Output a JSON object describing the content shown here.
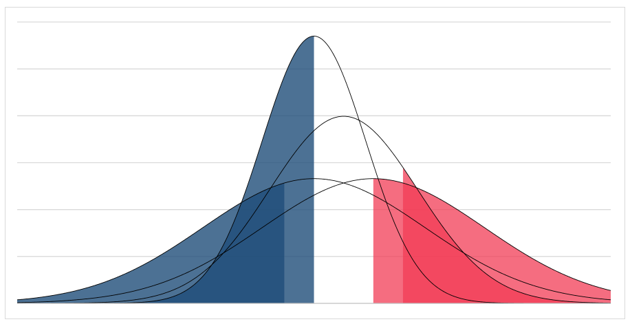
{
  "chart_data": {
    "type": "area",
    "title": "",
    "xlabel": "",
    "ylabel": "",
    "grid": true,
    "legend": "none",
    "xlim": [
      -4,
      4
    ],
    "ylim": [
      0,
      0.6
    ],
    "ygrid_step": 0.1,
    "series": [
      {
        "mean": 0,
        "sd": 0.7,
        "shade": [
          {
            "from": -4,
            "to": 0,
            "color": "#1f4e79",
            "opacity": 0.8
          }
        ]
      },
      {
        "mean": 0.4,
        "sd": 1.0,
        "shade": []
      },
      {
        "mean": 0,
        "sd": 1.5,
        "shade": [
          {
            "from": -4,
            "to": -0.4,
            "color": "#1f4e79",
            "opacity": 0.8
          }
        ]
      },
      {
        "mean": 0.8,
        "sd": 1.5,
        "shade": [
          {
            "from": 0.8,
            "to": 4,
            "color": "#f23c55",
            "opacity": 0.75
          }
        ]
      },
      {
        "mean": 0.4,
        "sd": 1.0,
        "shade": [
          {
            "from": 1.2,
            "to": 4,
            "color": "#f23c55",
            "opacity": 0.75
          }
        ]
      }
    ],
    "colors": {
      "grid": "#d9d9d9",
      "axis": "#bfbfbf",
      "outline": "#000000"
    }
  }
}
